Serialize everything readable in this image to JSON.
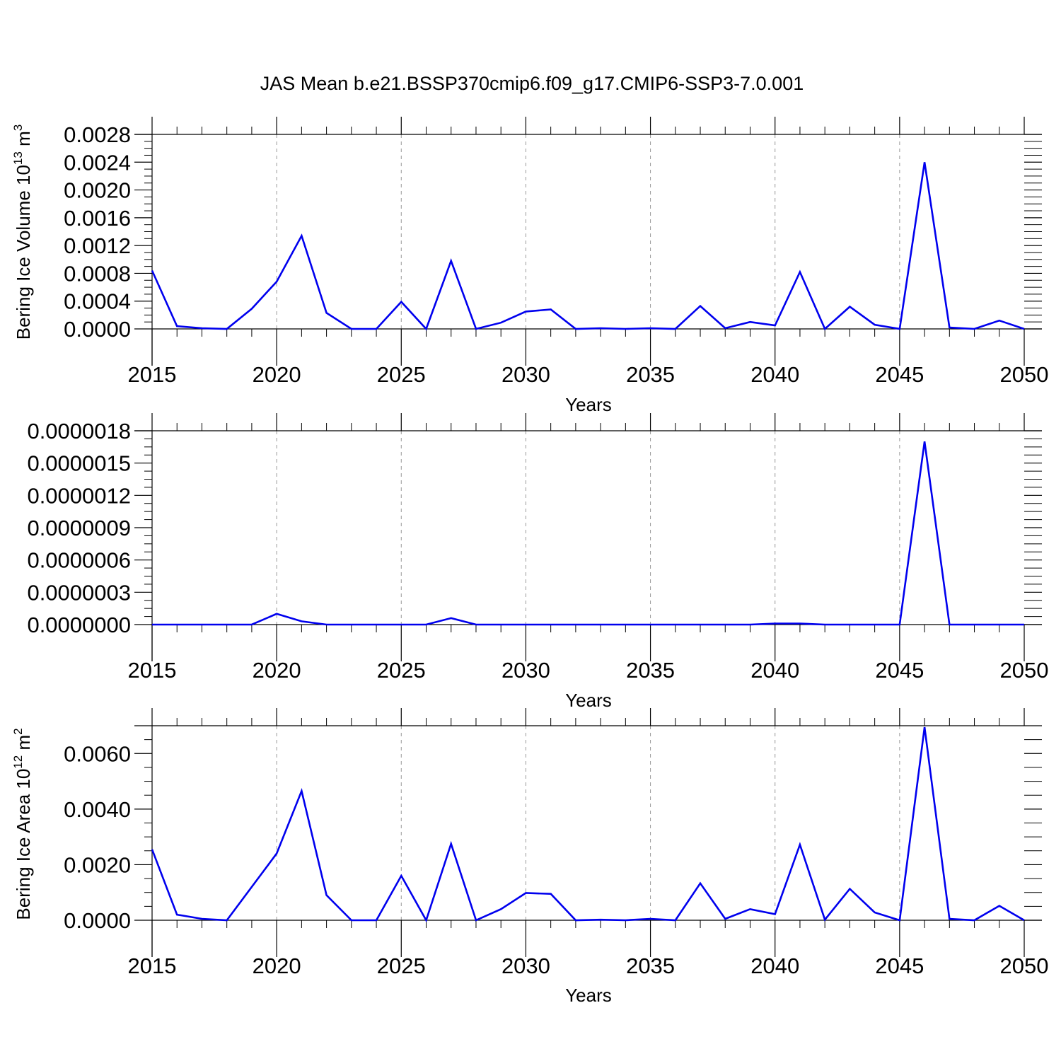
{
  "title": "JAS Mean b.e21.BSSP370cmip6.f09_g17.CMIP6-SSP3-7.0.001",
  "colors": {
    "line": "#0000ee",
    "axis": "#000000",
    "grid": "#999999"
  },
  "chart_data": [
    {
      "type": "line",
      "ylabel_main": "Bering Ice Volume 10",
      "ylabel_exp": "13",
      "ylabel_unit": " m",
      "ylabel_unit_exp": "3",
      "xlabel": "Years",
      "xlim": [
        2015,
        2050
      ],
      "ylim": [
        0,
        0.0028
      ],
      "xticks": [
        2015,
        2020,
        2025,
        2030,
        2035,
        2040,
        2045,
        2050
      ],
      "xtick_labels": [
        "2015",
        "2020",
        "2025",
        "2030",
        "2035",
        "2040",
        "2045",
        "2050"
      ],
      "yticks": [
        0,
        0.0004,
        0.0008,
        0.0012,
        0.0016,
        0.002,
        0.0024,
        0.0028
      ],
      "ytick_labels": [
        "0.0000",
        "0.0004",
        "0.0008",
        "0.0012",
        "0.0016",
        "0.0020",
        "0.0024",
        "0.0028"
      ],
      "grid": "vertical-dashed",
      "x": [
        2015,
        2016,
        2017,
        2018,
        2019,
        2020,
        2021,
        2022,
        2023,
        2024,
        2025,
        2026,
        2027,
        2028,
        2029,
        2030,
        2031,
        2032,
        2033,
        2034,
        2035,
        2036,
        2037,
        2038,
        2039,
        2040,
        2041,
        2042,
        2043,
        2044,
        2045,
        2046,
        2047,
        2048,
        2049,
        2050
      ],
      "values": [
        0.00084,
        4e-05,
        1e-05,
        0.0,
        0.00029,
        0.00068,
        0.00134,
        0.00023,
        0.0,
        0.0,
        0.00039,
        0.0,
        0.00098,
        0.0,
        9e-05,
        0.00025,
        0.00028,
        0.0,
        1e-05,
        0.0,
        1e-05,
        0.0,
        0.00033,
        1e-05,
        0.0001,
        5e-05,
        0.00082,
        0.0,
        0.00032,
        6e-05,
        0.0,
        0.0024,
        2e-05,
        0.0,
        0.00012,
        0.0
      ]
    },
    {
      "type": "line",
      "xlabel": "Years",
      "xlim": [
        2015,
        2050
      ],
      "ylim": [
        0,
        1.8e-06
      ],
      "xticks": [
        2015,
        2020,
        2025,
        2030,
        2035,
        2040,
        2045,
        2050
      ],
      "xtick_labels": [
        "2015",
        "2020",
        "2025",
        "2030",
        "2035",
        "2040",
        "2045",
        "2050"
      ],
      "yticks": [
        0,
        3e-07,
        6e-07,
        9e-07,
        1.2e-06,
        1.5e-06,
        1.8e-06
      ],
      "ytick_labels": [
        "0.0000000",
        "0.0000003",
        "0.0000006",
        "0.0000009",
        "0.0000012",
        "0.0000015",
        "0.0000018"
      ],
      "grid": "vertical-dashed",
      "x": [
        2015,
        2016,
        2017,
        2018,
        2019,
        2020,
        2021,
        2022,
        2023,
        2024,
        2025,
        2026,
        2027,
        2028,
        2029,
        2030,
        2031,
        2032,
        2033,
        2034,
        2035,
        2036,
        2037,
        2038,
        2039,
        2040,
        2041,
        2042,
        2043,
        2044,
        2045,
        2046,
        2047,
        2048,
        2049,
        2050
      ],
      "values": [
        0.0,
        0.0,
        0.0,
        0.0,
        0.0,
        1e-07,
        3e-08,
        0.0,
        0.0,
        0.0,
        0.0,
        0.0,
        6e-08,
        0.0,
        0.0,
        0.0,
        0.0,
        0.0,
        0.0,
        0.0,
        0.0,
        0.0,
        0.0,
        0.0,
        0.0,
        1e-08,
        1e-08,
        0.0,
        0.0,
        0.0,
        0.0,
        1.7e-06,
        0.0,
        0.0,
        0.0,
        0.0
      ]
    },
    {
      "type": "line",
      "ylabel_main": "Bering Ice Area 10",
      "ylabel_exp": "12",
      "ylabel_unit": " m",
      "ylabel_unit_exp": "2",
      "xlabel": "Years",
      "xlim": [
        2015,
        2050
      ],
      "ylim": [
        0,
        0.007
      ],
      "xticks": [
        2015,
        2020,
        2025,
        2030,
        2035,
        2040,
        2045,
        2050
      ],
      "xtick_labels": [
        "2015",
        "2020",
        "2025",
        "2030",
        "2035",
        "2040",
        "2045",
        "2050"
      ],
      "yticks": [
        0,
        0.002,
        0.004,
        0.006
      ],
      "ytick_labels": [
        "0.0000",
        "0.0020",
        "0.0040",
        "0.0060"
      ],
      "grid": "vertical-dashed",
      "x": [
        2015,
        2016,
        2017,
        2018,
        2019,
        2020,
        2021,
        2022,
        2023,
        2024,
        2025,
        2026,
        2027,
        2028,
        2029,
        2030,
        2031,
        2032,
        2033,
        2034,
        2035,
        2036,
        2037,
        2038,
        2039,
        2040,
        2041,
        2042,
        2043,
        2044,
        2045,
        2046,
        2047,
        2048,
        2049,
        2050
      ],
      "values": [
        0.00255,
        0.0002,
        5e-05,
        0.0,
        0.0012,
        0.0024,
        0.00465,
        0.0009,
        0.0,
        0.0,
        0.0016,
        0.0,
        0.00275,
        0.0,
        0.0004,
        0.00098,
        0.00095,
        0.0,
        2e-05,
        0.0,
        5e-05,
        0.0,
        0.00133,
        5e-05,
        0.0004,
        0.00022,
        0.00272,
        2e-05,
        0.00113,
        0.00028,
        0.0,
        0.00695,
        5e-05,
        0.0,
        0.00052,
        0.0
      ]
    }
  ]
}
